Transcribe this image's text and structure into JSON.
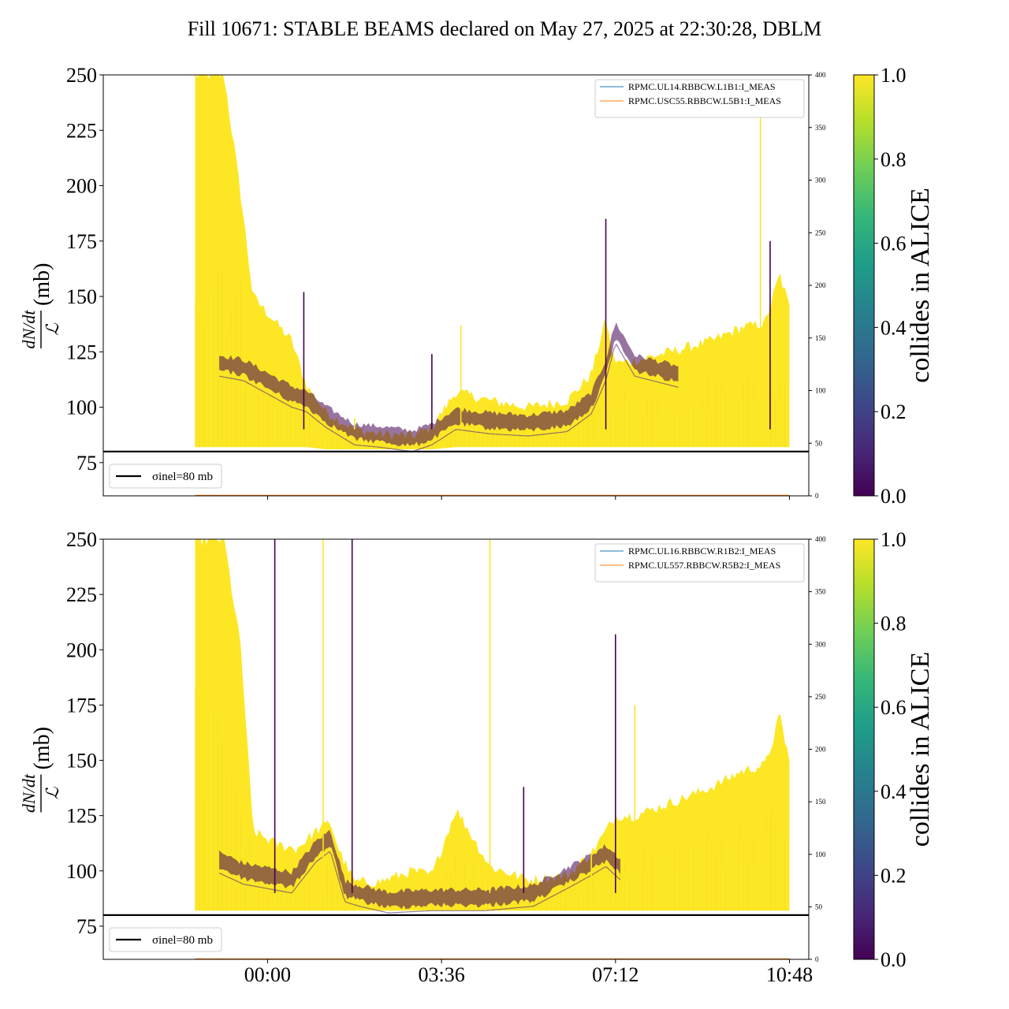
{
  "title": "Fill 10671: STABLE BEAMS declared on May 27, 2025 at 22:30:28, DBLM",
  "colors": {
    "viridis": [
      "#440154",
      "#482878",
      "#3e4989",
      "#31688e",
      "#26828e",
      "#1f9e89",
      "#35b779",
      "#6ece58",
      "#b5de2b",
      "#fde725"
    ],
    "ref_line": "#000000",
    "legend_blue": "#1f77b4",
    "legend_orange": "#ff7f0e"
  },
  "chart_data": [
    {
      "type": "scatter",
      "panel": "top",
      "ylabel": "dN/dt / ℒ (mb)",
      "ylabel_num": "dN/dt",
      "ylabel_den": "ℒ",
      "ylabel_unit": "(mb)",
      "ylim": [
        60,
        250
      ],
      "yticks": [
        75,
        100,
        125,
        150,
        175,
        200,
        225,
        250
      ],
      "y2lim": [
        0,
        400
      ],
      "y2ticks": [
        0,
        50,
        100,
        150,
        200,
        250,
        300,
        350,
        400
      ],
      "xlim_hours": [
        -3.4,
        11.2
      ],
      "xticks": [
        "00:00",
        "03:36",
        "07:12",
        "10:48"
      ],
      "xticks_hours": [
        0,
        3.6,
        7.2,
        10.8
      ],
      "show_xtick_labels": false,
      "legend_upper": [
        "RPMC.UL14.RBBCW.L1B1:I_MEAS",
        "RPMC.USC55.RBBCW.L5B1:I_MEAS"
      ],
      "legend_lower": "σinel=80 mb",
      "reference_line": 80,
      "color_mostly": "collides in ALICE = 1.0 (yellow)",
      "envelope": {
        "hours": [
          -1.5,
          -1.2,
          -0.9,
          -0.55,
          -0.3,
          0.5,
          0.8,
          1.2,
          1.8,
          2.3,
          3.0,
          3.4,
          3.9,
          4.6,
          5.4,
          6.2,
          6.7,
          7.0,
          7.15,
          7.3,
          7.8,
          8.5,
          9.2,
          9.8,
          10.3,
          10.6,
          10.8
        ],
        "upper": [
          250,
          250,
          250,
          195,
          150,
          130,
          110,
          98,
          90,
          88,
          87,
          91,
          107,
          103,
          100,
          103,
          115,
          140,
          122,
          120,
          122,
          126,
          130,
          136,
          138,
          160,
          145
        ],
        "lower": [
          82,
          82,
          82,
          82,
          82,
          82,
          82,
          81,
          81,
          81,
          81,
          81,
          82,
          82,
          82,
          82,
          82,
          82,
          82,
          82,
          82,
          82,
          82,
          82,
          82,
          82,
          82
        ]
      },
      "dark_band": {
        "hours": [
          -1.0,
          -0.5,
          0.0,
          0.5,
          0.8,
          1.2,
          1.8,
          2.3,
          3.0,
          3.4,
          3.9,
          4.6,
          5.4,
          6.2,
          6.7,
          7.0,
          7.2,
          7.6,
          8.5
        ],
        "values": [
          120,
          118,
          112,
          106,
          104,
          97,
          89,
          88,
          86,
          89,
          96,
          94,
          93,
          95,
          103,
          118,
          135,
          120,
          115
        ]
      },
      "spikes": [
        {
          "hour": 0.75,
          "value": 152
        },
        {
          "hour": 1.8,
          "value": 95
        },
        {
          "hour": 3.4,
          "value": 124
        },
        {
          "hour": 4.0,
          "value": 137
        },
        {
          "hour": 7.0,
          "value": 185
        },
        {
          "hour": 10.2,
          "value": 235
        },
        {
          "hour": 10.4,
          "value": 175
        }
      ]
    },
    {
      "type": "scatter",
      "panel": "bottom",
      "ylabel": "dN/dt / ℒ (mb)",
      "ylabel_num": "dN/dt",
      "ylabel_den": "ℒ",
      "ylabel_unit": "(mb)",
      "ylim": [
        60,
        250
      ],
      "yticks": [
        75,
        100,
        125,
        150,
        175,
        200,
        225,
        250
      ],
      "y2lim": [
        0,
        400
      ],
      "y2ticks": [
        0,
        50,
        100,
        150,
        200,
        250,
        300,
        350,
        400
      ],
      "xlim_hours": [
        -3.4,
        11.2
      ],
      "xticks": [
        "00:00",
        "03:36",
        "07:12",
        "10:48"
      ],
      "xticks_hours": [
        0,
        3.6,
        7.2,
        10.8
      ],
      "show_xtick_labels": true,
      "legend_upper": [
        "RPMC.UL16.RBBCW.R1B2:I_MEAS",
        "RPMC.UL557.RBBCW.R5B2:I_MEAS"
      ],
      "legend_lower": "σinel=80 mb",
      "reference_line": 80,
      "color_mostly": "collides in ALICE = 1.0 (yellow)",
      "envelope": {
        "hours": [
          -1.5,
          -1.2,
          -0.9,
          -0.55,
          -0.3,
          0.2,
          0.6,
          1.0,
          1.3,
          1.5,
          1.8,
          2.3,
          3.0,
          3.4,
          3.9,
          4.6,
          5.4,
          6.2,
          6.7,
          7.0,
          7.2,
          7.6,
          8.5,
          9.2,
          9.8,
          10.3,
          10.6,
          10.8
        ],
        "upper": [
          250,
          250,
          250,
          200,
          118,
          112,
          110,
          118,
          122,
          108,
          95,
          95,
          100,
          98,
          128,
          102,
          96,
          98,
          108,
          118,
          125,
          125,
          132,
          138,
          145,
          148,
          170,
          150
        ],
        "lower": [
          82,
          82,
          82,
          82,
          82,
          82,
          82,
          82,
          82,
          82,
          82,
          82,
          82,
          82,
          82,
          82,
          82,
          82,
          82,
          82,
          82,
          82,
          82,
          82,
          82,
          82,
          82,
          82
        ]
      },
      "dark_band": {
        "hours": [
          -1.0,
          -0.5,
          0.0,
          0.5,
          1.0,
          1.3,
          1.6,
          1.9,
          2.5,
          3.4,
          4.5,
          5.5,
          6.2,
          6.7,
          7.0,
          7.3
        ],
        "values": [
          105,
          100,
          98,
          96,
          110,
          115,
          92,
          90,
          87,
          88,
          88,
          90,
          98,
          104,
          108,
          102
        ]
      },
      "spikes": [
        {
          "hour": 0.15,
          "value": 250
        },
        {
          "hour": 1.15,
          "value": 250
        },
        {
          "hour": 1.75,
          "value": 250
        },
        {
          "hour": 4.6,
          "value": 250
        },
        {
          "hour": 5.3,
          "value": 138
        },
        {
          "hour": 6.7,
          "value": 108
        },
        {
          "hour": 7.2,
          "value": 207
        },
        {
          "hour": 7.6,
          "value": 175
        }
      ]
    }
  ],
  "colorbar": {
    "label": "collides in ALICE",
    "ticks": [
      "0.0",
      "0.2",
      "0.4",
      "0.6",
      "0.8",
      "1.0"
    ],
    "tick_values": [
      0.0,
      0.2,
      0.4,
      0.6,
      0.8,
      1.0
    ]
  }
}
